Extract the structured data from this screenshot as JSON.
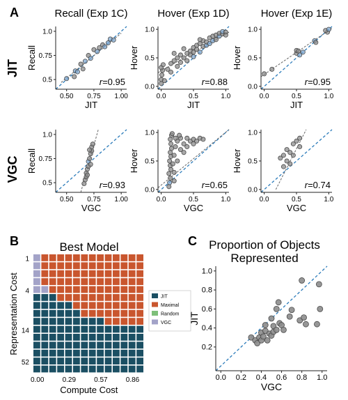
{
  "panel_labels": {
    "a": "A",
    "b": "B",
    "c": "C"
  },
  "row_labels": {
    "jit": "JIT",
    "vgc": "VGC"
  },
  "colors": {
    "dot": "#8c8c8c",
    "dot_stroke": "#4a4a4a",
    "blue_dot": "#7fa7cf",
    "identity_line": "#2b7bba",
    "fit_line": "#666666",
    "jit": "#1b4f63",
    "maximal": "#c9562e",
    "random": "#7ec07a",
    "vgc": "#a3a3c8"
  },
  "chart_data": [
    {
      "type": "scatter",
      "id": "jit-recall",
      "title": "Recall (Exp 1C)",
      "xlabel": "JIT",
      "ylabel": "Recall",
      "r_label": "=0.95",
      "xlim": [
        0.4,
        1.05
      ],
      "ylim": [
        0.4,
        1.05
      ],
      "xticks": [
        "0.50",
        "0.75",
        "1.00"
      ],
      "yticks": [
        "0.5",
        "0.75",
        "1.0"
      ],
      "points": [
        [
          0.5,
          0.51
        ],
        [
          0.57,
          0.53
        ],
        [
          0.58,
          0.59
        ],
        [
          0.6,
          0.58
        ],
        [
          0.63,
          0.66
        ],
        [
          0.65,
          0.61
        ],
        [
          0.67,
          0.69
        ],
        [
          0.7,
          0.75
        ],
        [
          0.72,
          0.72
        ],
        [
          0.75,
          0.81
        ],
        [
          0.78,
          0.79
        ],
        [
          0.8,
          0.83
        ],
        [
          0.83,
          0.86
        ],
        [
          0.85,
          0.84
        ],
        [
          0.88,
          0.88
        ],
        [
          0.9,
          0.92
        ],
        [
          0.93,
          0.91
        ]
      ],
      "fit": [
        [
          0.45,
          0.47
        ],
        [
          1.0,
          0.98
        ]
      ]
    },
    {
      "type": "scatter",
      "id": "jit-hover-1d",
      "title": "Hover (Exp 1D)",
      "xlabel": "JIT",
      "ylabel": "Hover",
      "r_label": "=0.88",
      "xlim": [
        -0.05,
        1.05
      ],
      "ylim": [
        -0.05,
        1.05
      ],
      "xticks": [
        "0.0",
        "0.5",
        "1.0"
      ],
      "yticks": [
        "0.0",
        "0.5",
        "1.0"
      ],
      "points": [
        [
          0.0,
          0.05
        ],
        [
          0.0,
          0.12
        ],
        [
          0.01,
          0.2
        ],
        [
          0.02,
          0.28
        ],
        [
          0.0,
          0.33
        ],
        [
          0.03,
          0.38
        ],
        [
          0.05,
          0.1
        ],
        [
          0.1,
          0.3
        ],
        [
          0.15,
          0.25
        ],
        [
          0.15,
          0.4
        ],
        [
          0.2,
          0.45
        ],
        [
          0.25,
          0.5
        ],
        [
          0.25,
          0.35
        ],
        [
          0.3,
          0.55
        ],
        [
          0.3,
          0.42
        ],
        [
          0.35,
          0.5
        ],
        [
          0.4,
          0.58
        ],
        [
          0.4,
          0.45
        ],
        [
          0.45,
          0.62
        ],
        [
          0.45,
          0.55
        ],
        [
          0.5,
          0.52
        ],
        [
          0.5,
          0.6
        ],
        [
          0.5,
          0.68
        ],
        [
          0.55,
          0.65
        ],
        [
          0.55,
          0.72
        ],
        [
          0.6,
          0.6
        ],
        [
          0.6,
          0.75
        ],
        [
          0.65,
          0.7
        ],
        [
          0.65,
          0.8
        ],
        [
          0.7,
          0.72
        ],
        [
          0.7,
          0.78
        ],
        [
          0.75,
          0.75
        ],
        [
          0.75,
          0.85
        ],
        [
          0.8,
          0.8
        ],
        [
          0.8,
          0.88
        ],
        [
          0.85,
          0.82
        ],
        [
          0.85,
          0.9
        ],
        [
          0.9,
          0.88
        ],
        [
          0.9,
          0.93
        ],
        [
          0.95,
          0.92
        ],
        [
          0.95,
          0.96
        ],
        [
          1.0,
          0.95
        ],
        [
          1.0,
          0.9
        ],
        [
          0.35,
          0.66
        ],
        [
          0.6,
          0.82
        ],
        [
          0.2,
          0.58
        ]
      ],
      "fit": [
        [
          -0.05,
          0.24
        ],
        [
          1.05,
          0.95
        ]
      ]
    },
    {
      "type": "scatter",
      "id": "jit-hover-1e",
      "title": "Hover (Exp 1E)",
      "xlabel": "JIT",
      "ylabel": "Hover",
      "r_label": "=0.95",
      "xlim": [
        -0.05,
        1.05
      ],
      "ylim": [
        -0.05,
        1.05
      ],
      "xticks": [
        "0.0",
        "0.5",
        "1.0"
      ],
      "yticks": [
        "0.0",
        "0.5",
        "1.0"
      ],
      "points": [
        [
          0.0,
          0.22
        ],
        [
          0.12,
          0.3
        ],
        [
          0.5,
          0.58
        ],
        [
          0.5,
          0.63
        ],
        [
          0.53,
          0.62
        ],
        [
          0.55,
          0.55
        ],
        [
          0.6,
          0.6
        ],
        [
          0.78,
          0.8
        ],
        [
          0.8,
          0.77
        ],
        [
          0.98,
          0.95
        ],
        [
          0.95,
          0.98
        ],
        [
          1.0,
          1.0
        ]
      ],
      "fit": [
        [
          -0.05,
          0.17
        ],
        [
          1.05,
          1.02
        ]
      ]
    },
    {
      "type": "scatter",
      "id": "vgc-recall",
      "title": "",
      "xlabel": "VGC",
      "ylabel": "Recall",
      "r_label": "=0.93",
      "xlim": [
        0.4,
        1.05
      ],
      "ylim": [
        0.4,
        1.05
      ],
      "xticks": [
        "0.50",
        "0.75",
        "1.00"
      ],
      "yticks": [
        "0.5",
        "0.75",
        "1.0"
      ],
      "points": [
        [
          0.66,
          0.49
        ],
        [
          0.67,
          0.53
        ],
        [
          0.68,
          0.56
        ],
        [
          0.68,
          0.6
        ],
        [
          0.69,
          0.64
        ],
        [
          0.7,
          0.67
        ],
        [
          0.7,
          0.72
        ],
        [
          0.71,
          0.75
        ],
        [
          0.72,
          0.8
        ],
        [
          0.73,
          0.83
        ],
        [
          0.73,
          0.87
        ],
        [
          0.74,
          0.9
        ],
        [
          0.72,
          0.69
        ],
        [
          0.69,
          0.58
        ],
        [
          0.71,
          0.84
        ]
      ],
      "fit": [
        [
          0.63,
          0.4
        ],
        [
          0.79,
          1.05
        ]
      ]
    },
    {
      "type": "scatter",
      "id": "vgc-hover-1d",
      "title": "",
      "xlabel": "VGC",
      "ylabel": "Hover",
      "r_label": "=0.65",
      "xlim": [
        -0.05,
        1.05
      ],
      "ylim": [
        -0.05,
        1.05
      ],
      "xticks": [
        "0.0",
        "0.5",
        "1.0"
      ],
      "yticks": [
        "0.0",
        "0.5",
        "1.0"
      ],
      "points": [
        [
          0.12,
          0.05
        ],
        [
          0.13,
          0.12
        ],
        [
          0.14,
          0.2
        ],
        [
          0.12,
          0.28
        ],
        [
          0.15,
          0.35
        ],
        [
          0.14,
          0.42
        ],
        [
          0.13,
          0.5
        ],
        [
          0.15,
          0.58
        ],
        [
          0.14,
          0.65
        ],
        [
          0.16,
          0.72
        ],
        [
          0.15,
          0.8
        ],
        [
          0.14,
          0.88
        ],
        [
          0.16,
          0.95
        ],
        [
          0.2,
          0.3
        ],
        [
          0.2,
          0.6
        ],
        [
          0.22,
          0.75
        ],
        [
          0.25,
          0.5
        ],
        [
          0.25,
          0.85
        ],
        [
          0.3,
          0.7
        ],
        [
          0.3,
          0.9
        ],
        [
          0.35,
          0.65
        ],
        [
          0.35,
          0.8
        ],
        [
          0.4,
          0.75
        ],
        [
          0.4,
          0.9
        ],
        [
          0.45,
          0.85
        ],
        [
          0.5,
          0.8
        ],
        [
          0.5,
          0.88
        ],
        [
          0.55,
          0.85
        ],
        [
          0.6,
          0.9
        ],
        [
          0.65,
          0.88
        ],
        [
          0.18,
          0.45
        ],
        [
          0.2,
          0.15
        ],
        [
          0.22,
          0.9
        ],
        [
          0.28,
          0.95
        ],
        [
          0.17,
          0.98
        ]
      ],
      "fit": [
        [
          -0.05,
          0.03
        ],
        [
          1.05,
          1.08
        ]
      ]
    },
    {
      "type": "scatter",
      "id": "vgc-hover-1e",
      "title": "",
      "xlabel": "VGC",
      "ylabel": "Hover",
      "r_label": "=0.74",
      "xlim": [
        -0.05,
        1.05
      ],
      "ylim": [
        -0.05,
        1.05
      ],
      "xticks": [
        "0.0",
        "0.5",
        "1.0"
      ],
      "yticks": [
        "0.0",
        "0.5",
        "1.0"
      ],
      "points": [
        [
          0.25,
          0.55
        ],
        [
          0.3,
          0.6
        ],
        [
          0.35,
          0.5
        ],
        [
          0.4,
          0.65
        ],
        [
          0.45,
          0.8
        ],
        [
          0.5,
          0.85
        ],
        [
          0.55,
          0.9
        ],
        [
          0.55,
          0.75
        ],
        [
          0.3,
          0.4
        ],
        [
          0.4,
          0.45
        ],
        [
          0.45,
          0.6
        ],
        [
          0.35,
          0.7
        ]
      ],
      "fit": [
        [
          0.18,
          0.0
        ],
        [
          0.65,
          1.05
        ]
      ]
    },
    {
      "type": "heatmap",
      "id": "best-model",
      "title": "Best Model",
      "xlabel": "Compute Cost",
      "ylabel": "Representation Cost",
      "xticks": [
        "0.00",
        "0.29",
        "0.57",
        "0.86"
      ],
      "yticks": [
        "1",
        "4",
        "14",
        "52"
      ],
      "legend": [
        "JIT",
        "Maximal",
        "Random",
        "VGC"
      ],
      "cols": 14,
      "rows": 15,
      "note": "rows top-to-bottom; 0=JIT,1=Maximal,2=Random,3=VGC",
      "grid": [
        "31111111111111",
        "31111111111111",
        "31111111111111",
        "31111111111111",
        "33111111111111",
        "00011111111111",
        "00000111111111",
        "00000011111111",
        "00000000011111",
        "00000000000000",
        "00000000000000",
        "00000000000000",
        "00000000000000",
        "00000000000000",
        "00000000000000"
      ]
    },
    {
      "type": "scatter",
      "id": "proportion",
      "title": "Proportion of Objects Represented",
      "xlabel": "VGC",
      "ylabel": "JIT",
      "xlim": [
        -0.05,
        1.05
      ],
      "ylim": [
        -0.05,
        1.05
      ],
      "xticks": [
        "0.0",
        "0.2",
        "0.4",
        "0.6",
        "0.8",
        "1.0"
      ],
      "yticks": [
        "0.2",
        "0.4",
        "0.6",
        "0.8",
        "1.0"
      ],
      "points": [
        [
          0.3,
          0.3
        ],
        [
          0.34,
          0.27
        ],
        [
          0.36,
          0.24
        ],
        [
          0.38,
          0.3
        ],
        [
          0.4,
          0.27
        ],
        [
          0.4,
          0.35
        ],
        [
          0.42,
          0.31
        ],
        [
          0.44,
          0.37
        ],
        [
          0.44,
          0.43
        ],
        [
          0.46,
          0.27
        ],
        [
          0.48,
          0.34
        ],
        [
          0.5,
          0.32
        ],
        [
          0.5,
          0.5
        ],
        [
          0.52,
          0.42
        ],
        [
          0.52,
          0.36
        ],
        [
          0.55,
          0.38
        ],
        [
          0.55,
          0.6
        ],
        [
          0.57,
          0.67
        ],
        [
          0.58,
          0.45
        ],
        [
          0.6,
          0.43
        ],
        [
          0.62,
          0.38
        ],
        [
          0.68,
          0.52
        ],
        [
          0.7,
          0.59
        ],
        [
          0.78,
          0.48
        ],
        [
          0.8,
          0.9
        ],
        [
          0.82,
          0.51
        ],
        [
          0.84,
          0.44
        ],
        [
          0.95,
          0.44
        ],
        [
          0.98,
          0.6
        ],
        [
          0.97,
          0.86
        ]
      ]
    }
  ]
}
